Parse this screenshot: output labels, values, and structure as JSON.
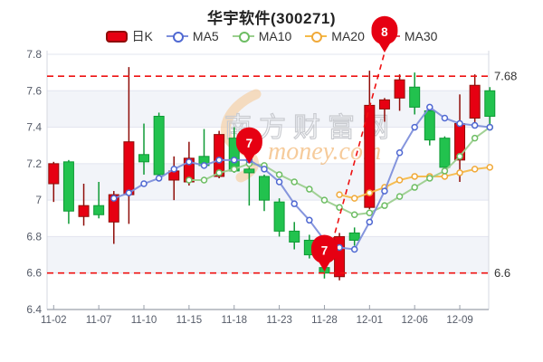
{
  "title": "华宇软件(300271)",
  "legend": {
    "items": [
      {
        "key": "dayk",
        "label": "日K",
        "type": "candle",
        "color": "#e60012",
        "border": "#8f0d09"
      },
      {
        "key": "ma5",
        "label": "MA5",
        "type": "line",
        "color": "#7e8fdb",
        "ring": "#4f68d2"
      },
      {
        "key": "ma10",
        "label": "MA10",
        "type": "line",
        "color": "#9ccf8f",
        "ring": "#6dbd63"
      },
      {
        "key": "ma20",
        "label": "MA20",
        "type": "line",
        "color": "#f5bb4a",
        "ring": "#f0a939"
      },
      {
        "key": "ma30",
        "label": "MA30",
        "type": "line",
        "color": "#e15660",
        "ring": "#d93c48"
      }
    ]
  },
  "watermark": {
    "text_cn": "南方财富网",
    "text_en": "money.com"
  },
  "chart_data": {
    "type": "candlestick",
    "title": "华宇软件(300271)",
    "y_axis": {
      "min": 6.4,
      "max": 7.8,
      "step": 0.2,
      "labels": [
        "7.8",
        "7.6",
        "7.4",
        "7.2",
        "7",
        "6.8",
        "6.6",
        "6.4"
      ]
    },
    "x_tick_labels": [
      "11-02",
      "11-07",
      "11-10",
      "11-15",
      "11-18",
      "11-23",
      "11-28",
      "12-01",
      "12-06",
      "12-09"
    ],
    "x_tick_indices": [
      0,
      3,
      6,
      9,
      12,
      15,
      18,
      21,
      24,
      27
    ],
    "band_pairs": [
      [
        7.6,
        7.4
      ],
      [
        7.2,
        7.0
      ],
      [
        6.8,
        6.6
      ]
    ],
    "ohlc": [
      {
        "d": "11-02",
        "o": 7.09,
        "c": 7.2,
        "h": 7.21,
        "l": 6.99
      },
      {
        "d": "11-03",
        "o": 7.21,
        "c": 6.94,
        "h": 7.22,
        "l": 6.87
      },
      {
        "d": "11-04",
        "o": 6.91,
        "c": 6.97,
        "h": 7.09,
        "l": 6.86
      },
      {
        "d": "11-07",
        "o": 6.97,
        "c": 6.92,
        "h": 7.1,
        "l": 6.9
      },
      {
        "d": "11-08",
        "o": 6.88,
        "c": 7.03,
        "h": 7.05,
        "l": 6.76
      },
      {
        "d": "11-09",
        "o": 7.03,
        "c": 7.32,
        "h": 7.73,
        "l": 6.87
      },
      {
        "d": "11-10",
        "o": 7.25,
        "c": 7.21,
        "h": 7.42,
        "l": 7.14
      },
      {
        "d": "11-11",
        "o": 7.46,
        "c": 7.14,
        "h": 7.48,
        "l": 7.13
      },
      {
        "d": "11-14",
        "o": 7.11,
        "c": 7.16,
        "h": 7.24,
        "l": 7.0
      },
      {
        "d": "11-15",
        "o": 7.1,
        "c": 7.23,
        "h": 7.32,
        "l": 7.08
      },
      {
        "d": "11-16",
        "o": 7.24,
        "c": 7.19,
        "h": 7.39,
        "l": 7.18
      },
      {
        "d": "11-17",
        "o": 7.13,
        "c": 7.36,
        "h": 7.38,
        "l": 7.12
      },
      {
        "d": "11-18",
        "o": 7.34,
        "c": 7.16,
        "h": 7.4,
        "l": 7.15
      },
      {
        "d": "11-21",
        "o": 7.17,
        "c": 7.15,
        "h": 7.18,
        "l": 6.97
      },
      {
        "d": "11-22",
        "o": 7.13,
        "c": 7.0,
        "h": 7.14,
        "l": 6.94
      },
      {
        "d": "11-23",
        "o": 6.99,
        "c": 6.83,
        "h": 7.01,
        "l": 6.8
      },
      {
        "d": "11-24",
        "o": 6.83,
        "c": 6.77,
        "h": 6.88,
        "l": 6.73
      },
      {
        "d": "11-25",
        "o": 6.78,
        "c": 6.7,
        "h": 6.81,
        "l": 6.68
      },
      {
        "d": "11-28",
        "o": 6.63,
        "c": 6.6,
        "h": 6.66,
        "l": 6.57
      },
      {
        "d": "11-29",
        "o": 6.58,
        "c": 6.8,
        "h": 6.82,
        "l": 6.56
      },
      {
        "d": "11-30",
        "o": 6.82,
        "c": 6.78,
        "h": 6.85,
        "l": 6.75
      },
      {
        "d": "12-01",
        "o": 6.96,
        "c": 7.52,
        "h": 7.71,
        "l": 6.95
      },
      {
        "d": "12-02",
        "o": 7.5,
        "c": 7.55,
        "h": 7.56,
        "l": 7.43
      },
      {
        "d": "12-05",
        "o": 7.56,
        "c": 7.66,
        "h": 7.69,
        "l": 7.49
      },
      {
        "d": "12-06",
        "o": 7.62,
        "c": 7.51,
        "h": 7.7,
        "l": 7.47
      },
      {
        "d": "12-07",
        "o": 7.49,
        "c": 7.33,
        "h": 7.49,
        "l": 7.3
      },
      {
        "d": "12-08",
        "o": 7.34,
        "c": 7.18,
        "h": 7.35,
        "l": 7.17
      },
      {
        "d": "12-09",
        "o": 7.22,
        "c": 7.42,
        "h": 7.58,
        "l": 7.1
      },
      {
        "d": "12-12",
        "o": 7.45,
        "c": 7.63,
        "h": 7.69,
        "l": 7.4
      },
      {
        "d": "12-13",
        "o": 7.6,
        "c": 7.46,
        "h": 7.62,
        "l": 7.4
      }
    ],
    "ma5": [
      null,
      null,
      null,
      null,
      7.01,
      7.04,
      7.09,
      7.12,
      7.17,
      7.21,
      7.19,
      7.22,
      7.22,
      7.22,
      7.17,
      7.1,
      6.98,
      6.89,
      6.78,
      6.74,
      6.73,
      6.88,
      7.05,
      7.26,
      7.4,
      7.51,
      7.45,
      7.42,
      7.41,
      7.4
    ],
    "ma10": [
      null,
      null,
      null,
      null,
      null,
      null,
      null,
      null,
      null,
      7.11,
      7.11,
      7.15,
      7.17,
      7.2,
      7.19,
      7.14,
      7.1,
      7.06,
      7.0,
      6.96,
      6.92,
      6.93,
      6.97,
      7.02,
      7.07,
      7.12,
      7.16,
      7.24,
      7.34,
      7.4
    ],
    "ma20": [
      null,
      null,
      null,
      null,
      null,
      null,
      null,
      null,
      null,
      null,
      null,
      null,
      null,
      null,
      null,
      null,
      null,
      null,
      null,
      7.03,
      7.01,
      7.04,
      7.07,
      7.11,
      7.13,
      7.13,
      7.13,
      7.15,
      7.17,
      7.18
    ],
    "ref_lines": [
      {
        "value": 7.68,
        "label": "7.68"
      },
      {
        "value": 6.6,
        "label": "6.6"
      }
    ],
    "markers": [
      {
        "label": "7",
        "index": 13,
        "anchor_value": 7.2
      },
      {
        "label": "7",
        "index": 18,
        "anchor_value": 6.61
      },
      {
        "label": "8",
        "index": 22,
        "anchor_value": 7.81
      }
    ],
    "trend_line": {
      "from": {
        "index": 18,
        "value": 6.61
      },
      "to": {
        "index": 22,
        "value": 7.81
      }
    },
    "colors": {
      "up": "#e60012",
      "up_border": "#8f0d09",
      "down": "#22c24e",
      "down_border": "#0e9a35",
      "ma5": "#7e8fdb",
      "ma5_ring": "#4f68d2",
      "ma10": "#9ccf8f",
      "ma10_ring": "#6dbd63",
      "ma20": "#f5bb4a",
      "ma20_ring": "#f0a939",
      "ref_line": "#ee1111",
      "ref_label": "#333333",
      "marker": "#e60012",
      "marker_text": "#ffffff",
      "grid": "#e2e5ef",
      "band": "#f2f4f9",
      "axis": "#9aa0ab",
      "tick_label": "#555b68",
      "watermark_cn": "#c9cbd0",
      "watermark_en": "#f0a24a",
      "watermark_swoosh": "#f6c690"
    }
  }
}
